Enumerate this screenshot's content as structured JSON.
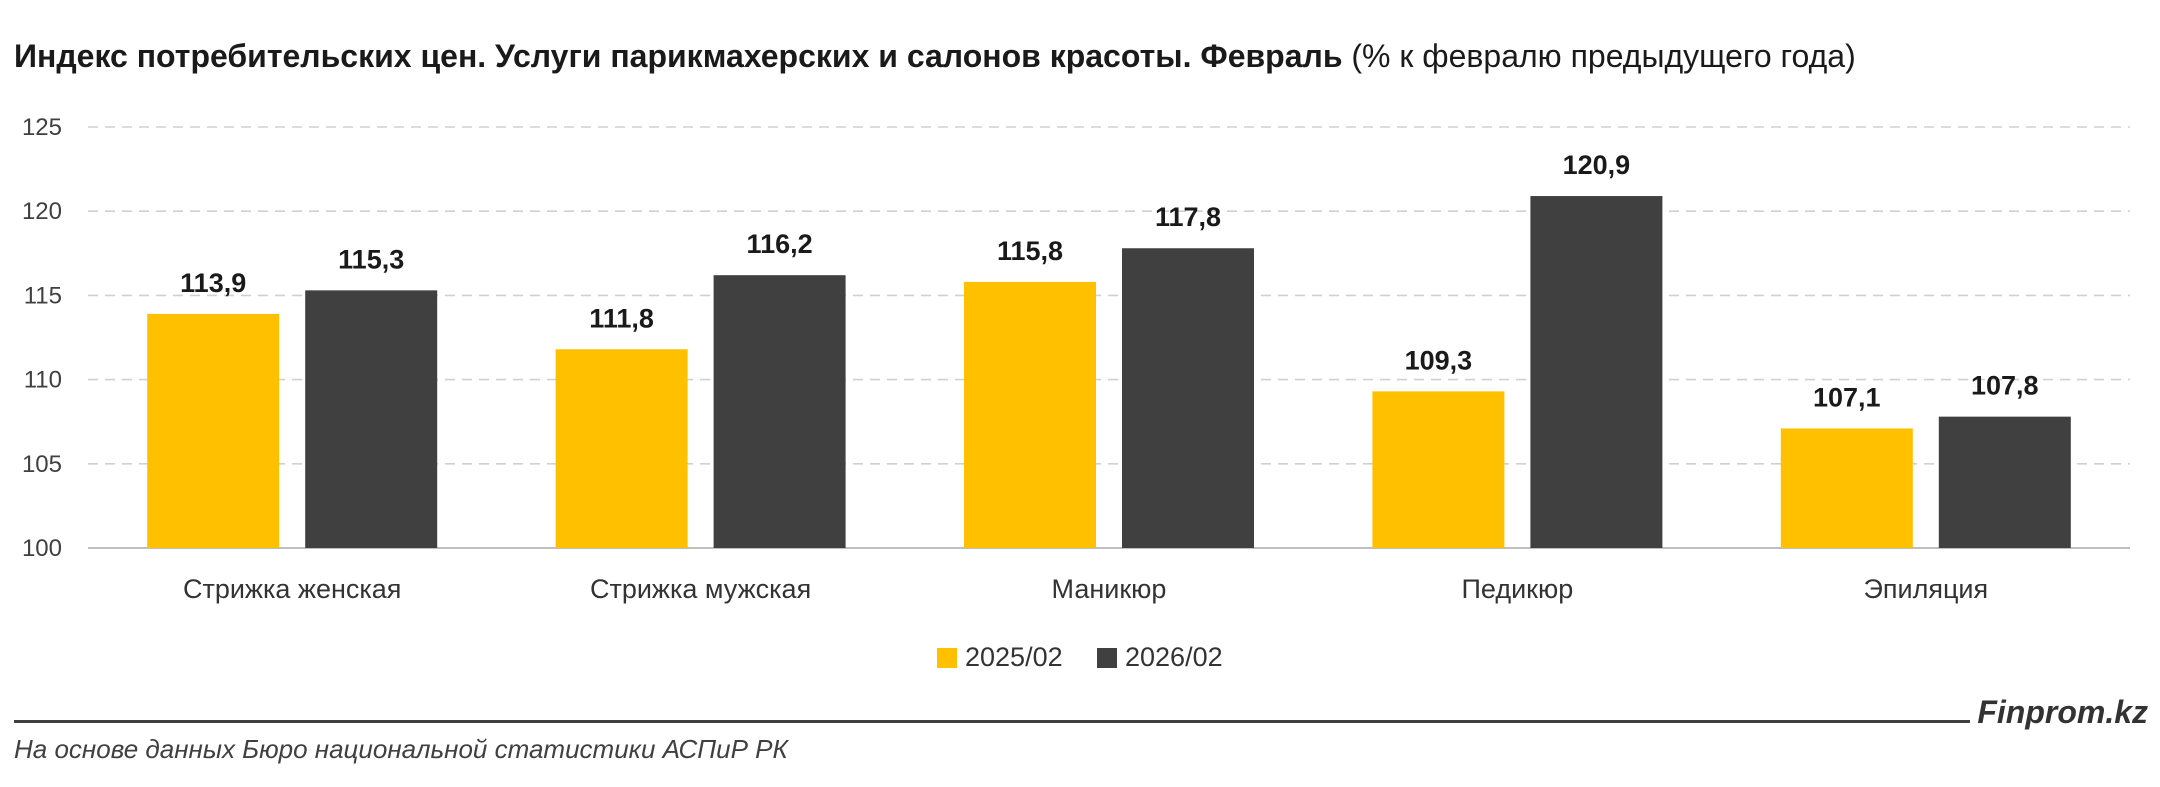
{
  "title": {
    "main": "Индекс потребительских цен. Услуги парикмахерских и салонов красоты. Февраль",
    "sub": "(% к февралю предыдущего года)"
  },
  "chart_data": {
    "type": "bar",
    "categories": [
      "Стрижка женская",
      "Стрижка мужская",
      "Маникюр",
      "Педикюр",
      "Эпиляция"
    ],
    "series": [
      {
        "name": "2025/02",
        "color": "#FFC000",
        "values": [
          113.9,
          111.8,
          115.8,
          109.3,
          107.1
        ],
        "labels": [
          "113,9",
          "111,8",
          "115,8",
          "109,3",
          "107,1"
        ]
      },
      {
        "name": "2026/02",
        "color": "#404040",
        "values": [
          115.3,
          116.2,
          117.8,
          120.9,
          107.8
        ],
        "labels": [
          "115,3",
          "116,2",
          "117,8",
          "120,9",
          "107,8"
        ]
      }
    ],
    "ylim": [
      100,
      125
    ],
    "yticks": [
      100,
      105,
      110,
      115,
      120,
      125
    ],
    "grid": true,
    "legend": "bottom-center"
  },
  "footer": {
    "brand": "Finprom.kz",
    "source": "На основе данных Бюро национальной статистики АСПиР РК"
  }
}
